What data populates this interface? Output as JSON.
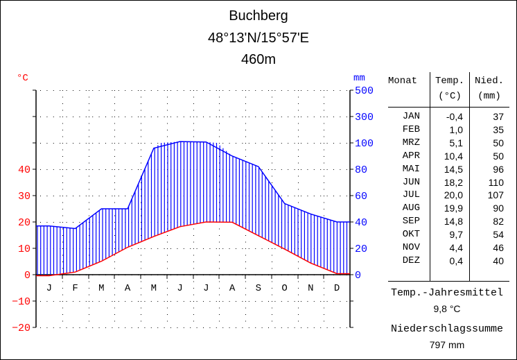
{
  "header": {
    "station": "Buchberg",
    "coordinates": "48°13'N/15°57'E",
    "elevation": "460m"
  },
  "axes": {
    "left_unit": "°C",
    "right_unit": "mm",
    "left_ticks": [
      "40",
      "30",
      "20",
      "10",
      "0",
      "−10",
      "−20"
    ],
    "right_ticks": [
      "500",
      "300",
      "100",
      "80",
      "60",
      "40",
      "20",
      "0"
    ],
    "month_letters": [
      "J",
      "F",
      "M",
      "A",
      "M",
      "J",
      "J",
      "A",
      "S",
      "O",
      "N",
      "D"
    ]
  },
  "table": {
    "headers": {
      "month": "Monat",
      "temp": "Temp.",
      "temp_unit": "(°C)",
      "precip": "Nied.",
      "precip_unit": "(mm)"
    },
    "rows": [
      {
        "month": "JAN",
        "temp": "-0,4",
        "precip": "37"
      },
      {
        "month": "FEB",
        "temp": "1,0",
        "precip": "35"
      },
      {
        "month": "MRZ",
        "temp": "5,1",
        "precip": "50"
      },
      {
        "month": "APR",
        "temp": "10,4",
        "precip": "50"
      },
      {
        "month": "MAI",
        "temp": "14,5",
        "precip": "96"
      },
      {
        "month": "JUN",
        "temp": "18,2",
        "precip": "110"
      },
      {
        "month": "JUL",
        "temp": "20,0",
        "precip": "107"
      },
      {
        "month": "AUG",
        "temp": "19,9",
        "precip": "90"
      },
      {
        "month": "SEP",
        "temp": "14,8",
        "precip": "82"
      },
      {
        "month": "OKT",
        "temp": "9,7",
        "precip": "54"
      },
      {
        "month": "NOV",
        "temp": "4,4",
        "precip": "46"
      },
      {
        "month": "DEZ",
        "temp": "0,4",
        "precip": "40"
      }
    ]
  },
  "summary": {
    "temp_label": "Temp.-Jahresmittel",
    "temp_value": "9,8 °C",
    "precip_label": "Niederschlagssumme",
    "precip_value": "797 mm"
  },
  "colors": {
    "temp": "#ff0000",
    "precip": "#0000ff",
    "axis_left_text": "#ff0000",
    "axis_right_text": "#0000ff"
  },
  "chart_data": {
    "type": "line",
    "title": "Buchberg 48°13'N/15°57'E 460m",
    "categories": [
      "J",
      "F",
      "M",
      "A",
      "M",
      "J",
      "J",
      "A",
      "S",
      "O",
      "N",
      "D"
    ],
    "series": [
      {
        "name": "Temperatur (°C)",
        "axis": "left",
        "values": [
          -0.4,
          1.0,
          5.1,
          10.4,
          14.5,
          18.2,
          20.0,
          19.9,
          14.8,
          9.7,
          4.4,
          0.4
        ]
      },
      {
        "name": "Niederschlag (mm)",
        "axis": "right",
        "values": [
          37,
          35,
          50,
          50,
          96,
          110,
          107,
          90,
          82,
          54,
          46,
          40
        ]
      }
    ],
    "xlabel": "",
    "ylabel_left": "°C",
    "ylabel_right": "mm",
    "ylim_left": [
      -20,
      40
    ],
    "right_ticks": [
      0,
      20,
      40,
      60,
      80,
      100,
      300,
      500
    ],
    "grid": true,
    "annual_mean_temp": 9.8,
    "annual_precip_total": 797
  }
}
